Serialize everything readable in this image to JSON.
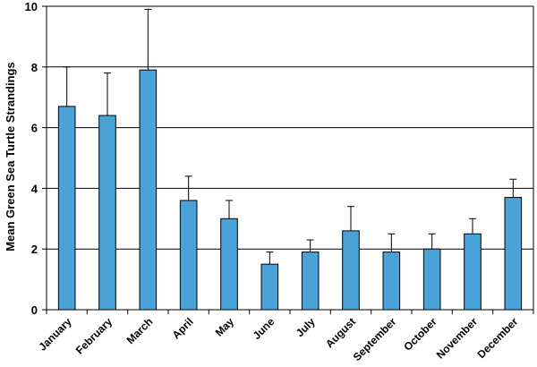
{
  "chart_data": {
    "type": "bar",
    "title": "",
    "xlabel": "",
    "ylabel": "Mean Green Sea Turtle Strandings",
    "ylim": [
      0,
      10
    ],
    "yticks": [
      0,
      2,
      4,
      6,
      8,
      10
    ],
    "grid": true,
    "legend": "none",
    "bar_color": "#4aa3d8",
    "categories": [
      "January",
      "February",
      "March",
      "April",
      "May",
      "June",
      "July",
      "August",
      "September",
      "October",
      "November",
      "December"
    ],
    "values": [
      6.7,
      6.4,
      7.9,
      3.6,
      3.0,
      1.5,
      1.9,
      2.6,
      1.9,
      2.0,
      2.5,
      3.7
    ],
    "error_upper": [
      8.0,
      7.8,
      9.9,
      4.4,
      3.6,
      1.9,
      2.3,
      3.4,
      2.5,
      2.5,
      3.0,
      4.3
    ]
  }
}
